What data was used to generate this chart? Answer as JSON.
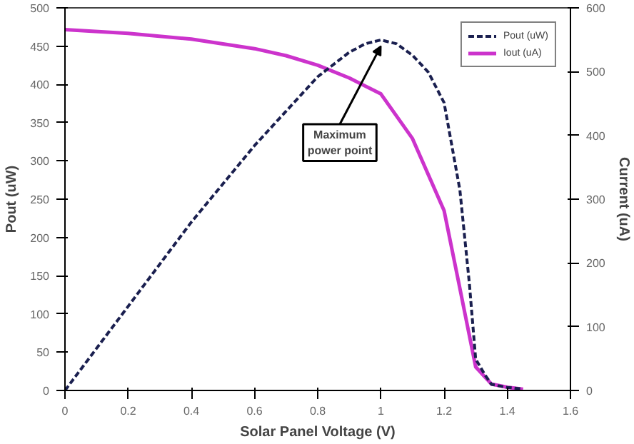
{
  "chart_data": {
    "type": "line",
    "xlabel": "Solar Panel Voltage (V)",
    "ylabel": "Pout (uW)",
    "y2label": "Current (uA)",
    "xlim": [
      0,
      1.6
    ],
    "xticks": [
      0,
      0.2,
      0.4,
      0.6,
      0.8,
      1,
      1.2,
      1.4,
      1.6
    ],
    "ylim": [
      0,
      500
    ],
    "yticks": [
      0,
      50,
      100,
      150,
      200,
      250,
      300,
      350,
      400,
      450,
      500
    ],
    "y2lim": [
      0,
      600
    ],
    "y2ticks": [
      0,
      100,
      200,
      300,
      400,
      500,
      600
    ],
    "grid": false,
    "legend": "top right",
    "marker": "none",
    "annotations": [
      {
        "text": "Maximum\npower point",
        "x": 1.0,
        "y": 458
      }
    ],
    "series": [
      {
        "name": "Pout (uW)",
        "color": "#1a1f4f",
        "line_style": "dashed",
        "x": [
          0,
          0.2,
          0.4,
          0.6,
          0.7,
          0.8,
          0.9,
          0.95,
          1.0,
          1.05,
          1.1,
          1.15,
          1.2,
          1.25,
          1.28,
          1.3,
          1.33,
          1.35,
          1.4,
          1.45
        ],
        "values": [
          0,
          110,
          220,
          320,
          365,
          410,
          442,
          453,
          458,
          453,
          438,
          416,
          376,
          262,
          140,
          41,
          20,
          8,
          4,
          2
        ]
      },
      {
        "name": "Iout (uA)",
        "color": "#cc33cc",
        "line_style": "solid",
        "axis": "y2",
        "x": [
          0,
          0.2,
          0.4,
          0.6,
          0.7,
          0.8,
          0.9,
          1.0,
          1.1,
          1.2,
          1.25,
          1.3,
          1.35,
          1.4,
          1.45
        ],
        "values": [
          566,
          560,
          551,
          536,
          525,
          510,
          490,
          465,
          395,
          282,
          160,
          37,
          10,
          5,
          2
        ]
      }
    ]
  }
}
